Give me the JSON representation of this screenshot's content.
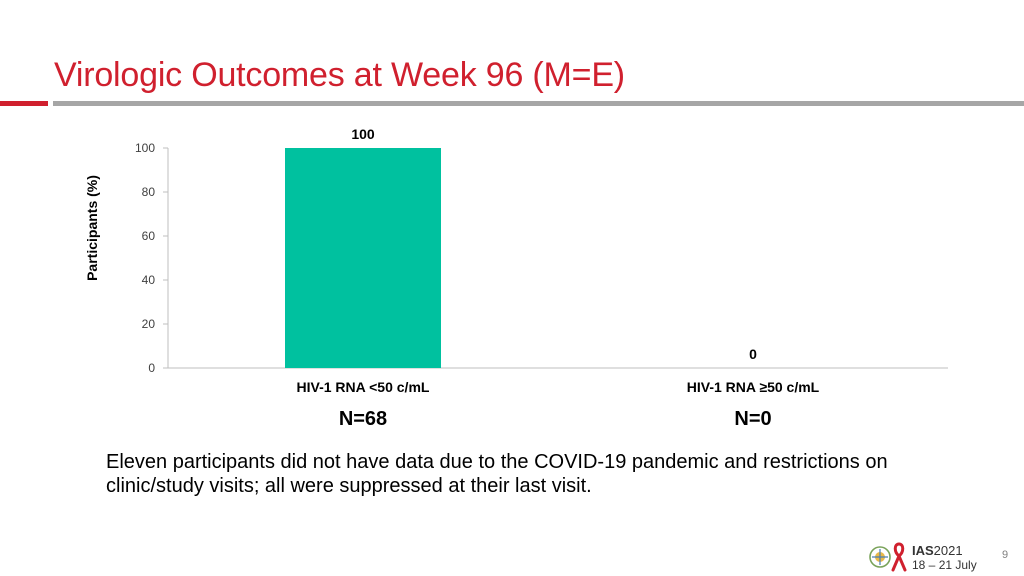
{
  "slide": {
    "title": "Virologic Outcomes at Week 96 (M=E)",
    "footnote": "Eleven participants did not have data due to the COVID-19 pandemic and restrictions on clinic/study visits; all were suppressed at their last visit.",
    "page_number": "9",
    "n_labels": [
      "N=68",
      "N=0"
    ],
    "logo": {
      "brand": "IAS",
      "year": "2021",
      "dates": "18 – 21 July",
      "ribbon_color": "#d0202e"
    },
    "colors": {
      "title": "#d0202e",
      "accent_rule": "#d0202e",
      "divider_rule": "#a6a6a6"
    }
  },
  "chart_data": {
    "type": "bar",
    "categories": [
      "HIV-1 RNA <50 c/mL",
      "HIV-1 RNA ≥50 c/mL"
    ],
    "values": [
      100,
      0
    ],
    "data_labels": [
      "100",
      "0"
    ],
    "ylabel": "Participants (%)",
    "ylim": [
      0,
      100
    ],
    "yticks": [
      0,
      20,
      40,
      60,
      80,
      100
    ],
    "bar_color": "#00c19f",
    "grid": false,
    "legend": "none"
  }
}
